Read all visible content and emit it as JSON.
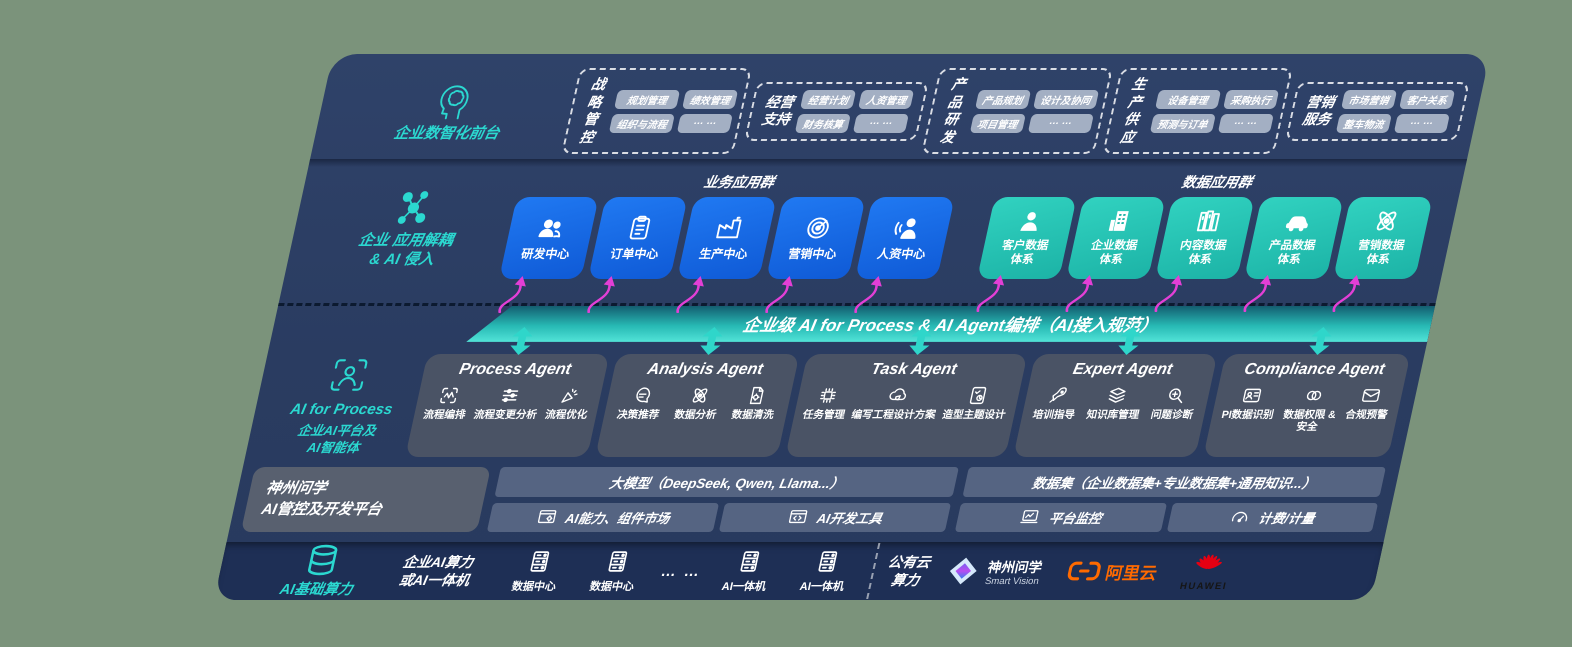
{
  "colors": {
    "page_bg": "#7b937b",
    "panel": "#2b3e63",
    "panel_dark": "#1e2f55",
    "teal_accent": "#2bd8d0",
    "blue_box": "#1569e6",
    "teal_box": "#27c5b4",
    "magenta_arrow": "#e33fd6",
    "banner_teal": "#27b9b4",
    "aliyun_orange": "#ff6a00",
    "huawei_red": "#e60012"
  },
  "front_row": {
    "label": "企业数智化前台",
    "groups": [
      {
        "title": "战略\n管控",
        "chips": [
          "规划管理",
          "绩效管理",
          "组织与流程",
          "… …"
        ]
      },
      {
        "title": "经营\n支持",
        "chips": [
          "经营计划",
          "人资管理",
          "财务核算",
          "… …"
        ]
      },
      {
        "title": "产品\n研发",
        "chips": [
          "产品规划",
          "设计及协同",
          "项目管理",
          "… …"
        ]
      },
      {
        "title": "生产\n供应",
        "chips": [
          "设备管理",
          "采购执行",
          "预测与订单",
          "… …"
        ]
      },
      {
        "title": "营销\n服务",
        "chips": [
          "市场营销",
          "客户关系",
          "整车物流",
          "… …"
        ]
      }
    ]
  },
  "app_row": {
    "label": "企业 应用解耦\n& AI 侵入",
    "business": {
      "title": "业务应用群",
      "boxes": [
        {
          "label": "研发中心",
          "icon": "people"
        },
        {
          "label": "订单中心",
          "icon": "clipboard"
        },
        {
          "label": "生产中心",
          "icon": "factory"
        },
        {
          "label": "营销中心",
          "icon": "target"
        },
        {
          "label": "人资中心",
          "icon": "person-waves"
        }
      ]
    },
    "data": {
      "title": "数据应用群",
      "boxes": [
        {
          "label": "客户数据\n体系",
          "icon": "person"
        },
        {
          "label": "企业数据\n体系",
          "icon": "building"
        },
        {
          "label": "内容数据\n体系",
          "icon": "books"
        },
        {
          "label": "产品数据\n体系",
          "icon": "car"
        },
        {
          "label": "营销数据\n体系",
          "icon": "atom"
        }
      ]
    }
  },
  "banner": {
    "text": "企业级 AI for Process & AI Agent编排（AI接入规范）"
  },
  "agent_row": {
    "label_en": "AI for Process",
    "label_zh": "企业AI平台及\nAI智能体",
    "agents": [
      {
        "title": "Process Agent",
        "items": [
          {
            "label": "流程编排",
            "icon": "wave-box"
          },
          {
            "label": "流程变更分析",
            "icon": "sliders"
          },
          {
            "label": "流程优化",
            "icon": "spark"
          }
        ]
      },
      {
        "title": "Analysis Agent",
        "items": [
          {
            "label": "决策推荐",
            "icon": "chat-head"
          },
          {
            "label": "数据分析",
            "icon": "atom"
          },
          {
            "label": "数据清洗",
            "icon": "doc-gear"
          }
        ]
      },
      {
        "title": "Task Agent",
        "items": [
          {
            "label": "任务管理",
            "icon": "chip-grid"
          },
          {
            "label": "编写工程设计方案",
            "icon": "cloud-pen"
          },
          {
            "label": "造型主题设计",
            "icon": "tablet-check"
          }
        ]
      },
      {
        "title": "Expert Agent",
        "items": [
          {
            "label": "培训指导",
            "icon": "rocket"
          },
          {
            "label": "知识库管理",
            "icon": "layers"
          },
          {
            "label": "问题诊断",
            "icon": "magnifier"
          }
        ]
      },
      {
        "title": "Compliance Agent",
        "items": [
          {
            "label": "PI数据识别",
            "icon": "id-card"
          },
          {
            "label": "数据权限 &\n安全",
            "icon": "link-rings"
          },
          {
            "label": "合规预警",
            "icon": "mail"
          }
        ]
      }
    ]
  },
  "platform_row": {
    "label": "神州问学\nAI管控及开发平台",
    "model_bar": "大模型（DeepSeek, Qwen, Llama...）",
    "dataset_bar": "数据集（企业数据集+专业数据集+通用知识...）",
    "left_cells": [
      {
        "label": "AI能力、组件市场",
        "icon": "window-gear"
      },
      {
        "label": "AI开发工具",
        "icon": "window-code"
      }
    ],
    "right_cells": [
      {
        "label": "平台监控",
        "icon": "monitor"
      },
      {
        "label": "计费/计量",
        "icon": "gauge"
      }
    ]
  },
  "infra_row": {
    "label": "AI基础算力",
    "compute": "企业AI算力\n或AI一体机",
    "nodes": [
      {
        "label": "数据中心",
        "icon": "server"
      },
      {
        "label": "数据中心",
        "icon": "server"
      },
      {
        "label": "… …",
        "icon": "none"
      },
      {
        "label": "AI一体机",
        "icon": "server"
      },
      {
        "label": "AI一体机",
        "icon": "server"
      }
    ],
    "cloud": "公有云\n算力",
    "logos": {
      "smartvision": {
        "zh": "神州问学",
        "en": "Smart Vision"
      },
      "aliyun": "阿里云",
      "huawei": "HUAWEI"
    }
  }
}
